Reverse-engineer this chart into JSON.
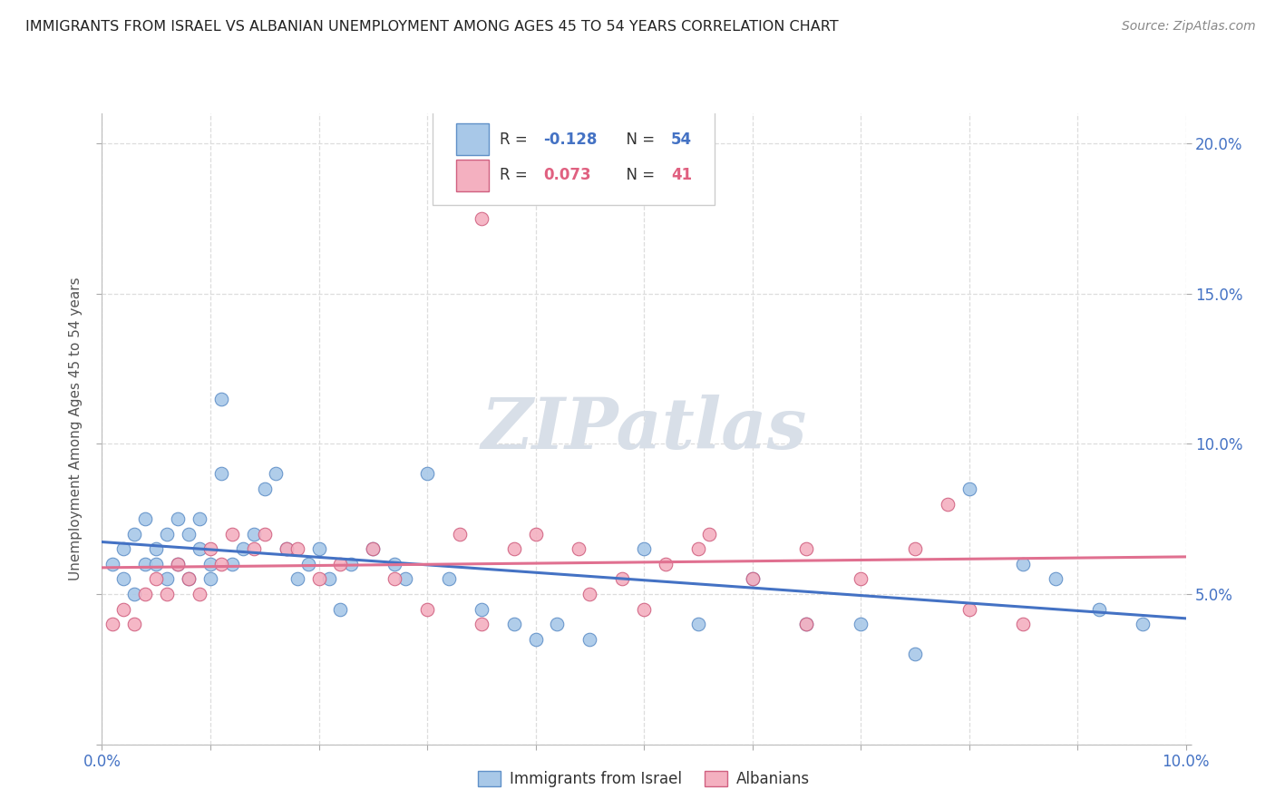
{
  "title": "IMMIGRANTS FROM ISRAEL VS ALBANIAN UNEMPLOYMENT AMONG AGES 45 TO 54 YEARS CORRELATION CHART",
  "source": "Source: ZipAtlas.com",
  "ylabel": "Unemployment Among Ages 45 to 54 years",
  "xlim": [
    0.0,
    0.1
  ],
  "ylim": [
    0.0,
    0.21
  ],
  "xticks": [
    0.0,
    0.01,
    0.02,
    0.03,
    0.04,
    0.05,
    0.06,
    0.07,
    0.08,
    0.09,
    0.1
  ],
  "xtick_labels": [
    "0.0%",
    "",
    "",
    "",
    "",
    "",
    "",
    "",
    "",
    "",
    "10.0%"
  ],
  "yticks": [
    0.0,
    0.05,
    0.1,
    0.15,
    0.2
  ],
  "ytick_labels": [
    "",
    "5.0%",
    "10.0%",
    "15.0%",
    "20.0%"
  ],
  "r1": "-0.128",
  "n1": "54",
  "r2": "0.073",
  "n2": "41",
  "color_blue": "#a8c8e8",
  "color_pink": "#f4b0c0",
  "edge_blue": "#6090c8",
  "edge_pink": "#d06080",
  "line_blue": "#4472c4",
  "line_pink": "#e07090",
  "watermark_color": "#d8dfe8",
  "israel_x": [
    0.001,
    0.002,
    0.002,
    0.003,
    0.003,
    0.004,
    0.004,
    0.005,
    0.005,
    0.006,
    0.006,
    0.007,
    0.007,
    0.008,
    0.008,
    0.009,
    0.009,
    0.01,
    0.01,
    0.011,
    0.011,
    0.012,
    0.013,
    0.014,
    0.015,
    0.016,
    0.017,
    0.018,
    0.019,
    0.02,
    0.021,
    0.022,
    0.023,
    0.025,
    0.027,
    0.028,
    0.03,
    0.032,
    0.035,
    0.038,
    0.04,
    0.042,
    0.045,
    0.05,
    0.055,
    0.06,
    0.065,
    0.07,
    0.075,
    0.08,
    0.085,
    0.088,
    0.092,
    0.096
  ],
  "israel_y": [
    0.06,
    0.055,
    0.065,
    0.05,
    0.07,
    0.06,
    0.075,
    0.065,
    0.06,
    0.07,
    0.055,
    0.075,
    0.06,
    0.07,
    0.055,
    0.065,
    0.075,
    0.06,
    0.055,
    0.115,
    0.09,
    0.06,
    0.065,
    0.07,
    0.085,
    0.09,
    0.065,
    0.055,
    0.06,
    0.065,
    0.055,
    0.045,
    0.06,
    0.065,
    0.06,
    0.055,
    0.09,
    0.055,
    0.045,
    0.04,
    0.035,
    0.04,
    0.035,
    0.065,
    0.04,
    0.055,
    0.04,
    0.04,
    0.03,
    0.085,
    0.06,
    0.055,
    0.045,
    0.04
  ],
  "albanian_x": [
    0.001,
    0.002,
    0.003,
    0.004,
    0.005,
    0.006,
    0.007,
    0.008,
    0.009,
    0.01,
    0.011,
    0.012,
    0.014,
    0.015,
    0.017,
    0.018,
    0.02,
    0.022,
    0.025,
    0.027,
    0.03,
    0.033,
    0.035,
    0.038,
    0.04,
    0.044,
    0.048,
    0.052,
    0.056,
    0.06,
    0.065,
    0.07,
    0.075,
    0.08,
    0.085,
    0.055,
    0.045,
    0.035,
    0.05,
    0.065,
    0.078
  ],
  "albanian_y": [
    0.04,
    0.045,
    0.04,
    0.05,
    0.055,
    0.05,
    0.06,
    0.055,
    0.05,
    0.065,
    0.06,
    0.07,
    0.065,
    0.07,
    0.065,
    0.065,
    0.055,
    0.06,
    0.065,
    0.055,
    0.045,
    0.07,
    0.175,
    0.065,
    0.07,
    0.065,
    0.055,
    0.06,
    0.07,
    0.055,
    0.065,
    0.055,
    0.065,
    0.045,
    0.04,
    0.065,
    0.05,
    0.04,
    0.045,
    0.04,
    0.08
  ]
}
